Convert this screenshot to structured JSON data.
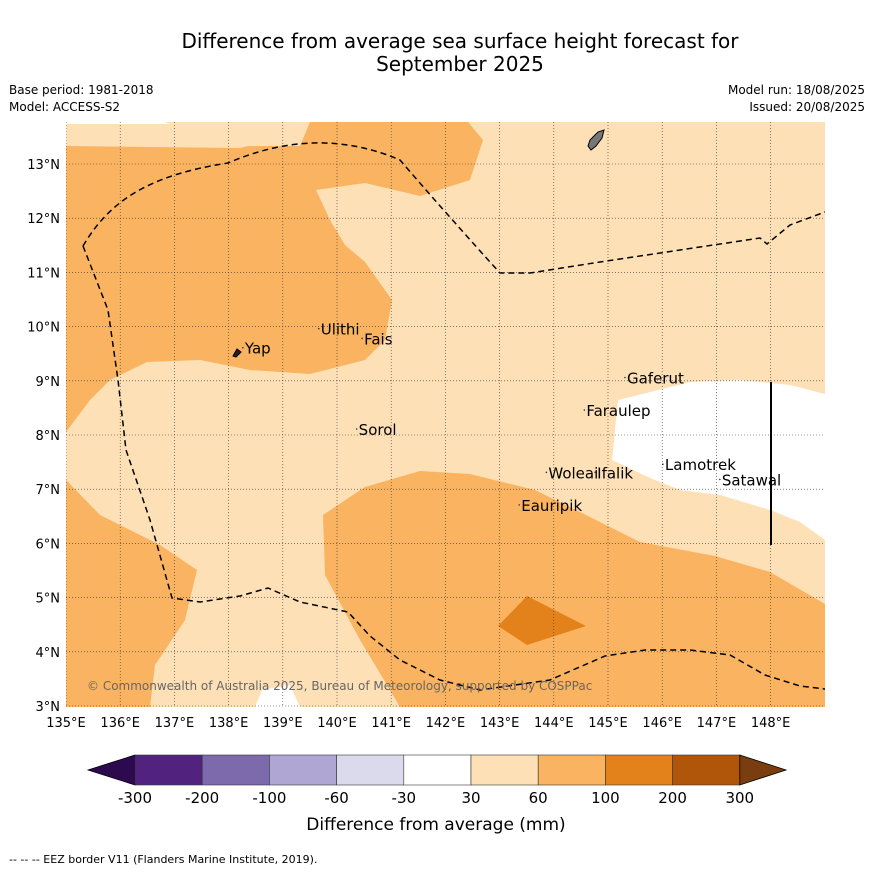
{
  "title_line1": "Difference from average sea surface height forecast for",
  "title_line2": "September 2025",
  "base_period": "Base period: 1981-2018",
  "model": "Model: ACCESS-S2",
  "model_run": "Model run: 18/08/2025",
  "issued": "Issued: 20/08/2025",
  "copyright": "© Commonwealth of Australia 2025, Bureau of Meteorology, supported by COSPPac",
  "footnote": "--  --  -- EEZ border V11 (Flanders Marine Institute, 2019).",
  "map": {
    "lon_ticks": [
      "135°E",
      "136°E",
      "137°E",
      "138°E",
      "139°E",
      "140°E",
      "141°E",
      "142°E",
      "143°E",
      "144°E",
      "145°E",
      "146°E",
      "147°E",
      "148°E"
    ],
    "lat_ticks": [
      "3°N",
      "4°N",
      "5°N",
      "6°N",
      "7°N",
      "8°N",
      "9°N",
      "10°N",
      "11°N",
      "12°N",
      "13°N"
    ],
    "places": [
      {
        "name": "Yap",
        "lon": 138.3,
        "lat": 9.5
      },
      {
        "name": "Ulithi",
        "lon": 139.7,
        "lat": 9.85
      },
      {
        "name": "Fais",
        "lon": 140.5,
        "lat": 9.67
      },
      {
        "name": "Sorol",
        "lon": 140.4,
        "lat": 8.0
      },
      {
        "name": "Gaferut",
        "lon": 145.35,
        "lat": 8.95
      },
      {
        "name": "Faraulep",
        "lon": 144.6,
        "lat": 8.35
      },
      {
        "name": "Woleai",
        "lon": 143.9,
        "lat": 7.2
      },
      {
        "name": "Ifalik",
        "lon": 144.8,
        "lat": 7.2
      },
      {
        "name": "Lamotrek",
        "lon": 146.05,
        "lat": 7.35
      },
      {
        "name": "Satawal",
        "lon": 147.1,
        "lat": 7.07
      },
      {
        "name": "Eauripik",
        "lon": 143.4,
        "lat": 6.6
      }
    ]
  },
  "colorbar": {
    "labels": [
      "-300",
      "-200",
      "-100",
      "-60",
      "-30",
      "30",
      "60",
      "100",
      "200",
      "300"
    ],
    "title": "Difference from average (mm)",
    "colors": [
      "#2d0a50",
      "#51237f",
      "#7d6aac",
      "#b0a6d3",
      "#dbd9ec",
      "#ffffff",
      "#fde0b5",
      "#fab461",
      "#e3821b",
      "#b0560a",
      "#7a3d10"
    ]
  }
}
